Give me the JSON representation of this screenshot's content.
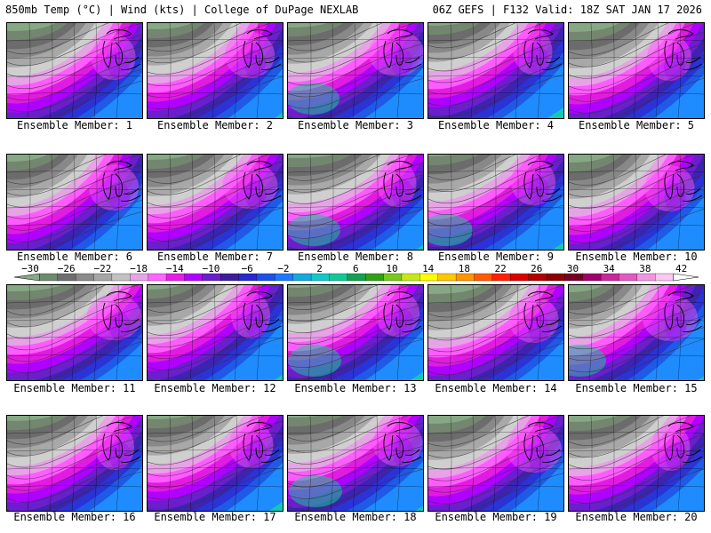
{
  "header": {
    "left": "850mb Temp (°C) | Wind (kts) | College of DuPage NEXLAB",
    "right": "06Z GEFS | F132 Valid: 18Z SAT JAN 17 2026"
  },
  "colorbar": {
    "ticks": [
      "−30",
      "−26",
      "−22",
      "−18",
      "−14",
      "−10",
      "−6",
      "−2",
      "2",
      "6",
      "10",
      "14",
      "18",
      "22",
      "26",
      "30",
      "34",
      "38",
      "42"
    ],
    "colors": [
      "#8aa889",
      "#6f8b6f",
      "#6e6e6e",
      "#8a8a8a",
      "#a6a6a6",
      "#c2c2c2",
      "#e6a6e6",
      "#ff66ff",
      "#e61ee6",
      "#b400ff",
      "#6a1ecc",
      "#3c1e9c",
      "#2828cc",
      "#1e50e6",
      "#1e78ff",
      "#14aadc",
      "#14c8c8",
      "#14c896",
      "#14a050",
      "#32a014",
      "#78c81e",
      "#c8e61e",
      "#ffff00",
      "#ffc800",
      "#ff9600",
      "#ff5a00",
      "#ff1e00",
      "#dc0000",
      "#b40000",
      "#8c0000",
      "#780028",
      "#a0006e",
      "#c8289b",
      "#e15ac3",
      "#f096e1",
      "#fac8f0",
      "#ffffff"
    ]
  },
  "members": [
    {
      "label": "Ensemble Member: 1",
      "variant": 1
    },
    {
      "label": "Ensemble Member: 2",
      "variant": 2
    },
    {
      "label": "Ensemble Member: 3",
      "variant": 3
    },
    {
      "label": "Ensemble Member: 4",
      "variant": 4
    },
    {
      "label": "Ensemble Member: 5",
      "variant": 5
    },
    {
      "label": "Ensemble Member: 6",
      "variant": 6
    },
    {
      "label": "Ensemble Member: 7",
      "variant": 7
    },
    {
      "label": "Ensemble Member: 8",
      "variant": 8
    },
    {
      "label": "Ensemble Member: 9",
      "variant": 9
    },
    {
      "label": "Ensemble Member: 10",
      "variant": 10
    },
    {
      "label": "Ensemble Member: 11",
      "variant": 11
    },
    {
      "label": "Ensemble Member: 12",
      "variant": 12
    },
    {
      "label": "Ensemble Member: 13",
      "variant": 13
    },
    {
      "label": "Ensemble Member: 14",
      "variant": 14
    },
    {
      "label": "Ensemble Member: 15",
      "variant": 15
    },
    {
      "label": "Ensemble Member: 16",
      "variant": 16
    },
    {
      "label": "Ensemble Member: 17",
      "variant": 17
    },
    {
      "label": "Ensemble Member: 18",
      "variant": 18
    },
    {
      "label": "Ensemble Member: 19",
      "variant": 19
    },
    {
      "label": "Ensemble Member: 20",
      "variant": 20
    }
  ]
}
